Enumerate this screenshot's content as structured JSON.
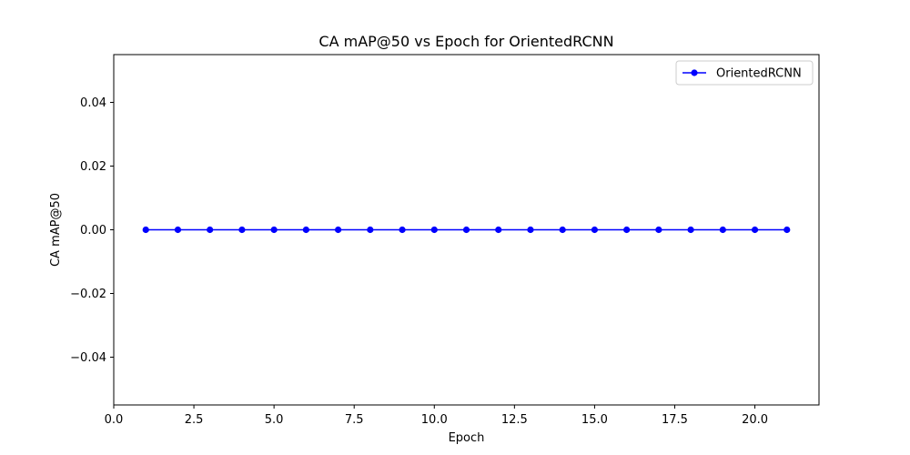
{
  "chart_data": {
    "type": "line",
    "title": "CA mAP@50 vs Epoch for OrientedRCNN",
    "xlabel": "Epoch",
    "ylabel": "CA mAP@50",
    "xlim": [
      0,
      22
    ],
    "ylim": [
      -0.055,
      0.055
    ],
    "x_ticks": [
      0.0,
      2.5,
      5.0,
      7.5,
      10.0,
      12.5,
      15.0,
      17.5,
      20.0
    ],
    "x_tick_labels": [
      "0.0",
      "2.5",
      "5.0",
      "7.5",
      "10.0",
      "12.5",
      "15.0",
      "17.5",
      "20.0"
    ],
    "y_ticks": [
      -0.04,
      -0.02,
      0.0,
      0.02,
      0.04
    ],
    "y_tick_labels": [
      "−0.04",
      "−0.02",
      "0.00",
      "0.02",
      "0.04"
    ],
    "grid": false,
    "legend_position": "top-right",
    "series": [
      {
        "name": "OrientedRCNN",
        "color": "#0000ff",
        "marker": "circle",
        "x": [
          1,
          2,
          3,
          4,
          5,
          6,
          7,
          8,
          9,
          10,
          11,
          12,
          13,
          14,
          15,
          16,
          17,
          18,
          19,
          20,
          21
        ],
        "y": [
          0,
          0,
          0,
          0,
          0,
          0,
          0,
          0,
          0,
          0,
          0,
          0,
          0,
          0,
          0,
          0,
          0,
          0,
          0,
          0,
          0
        ]
      }
    ]
  }
}
